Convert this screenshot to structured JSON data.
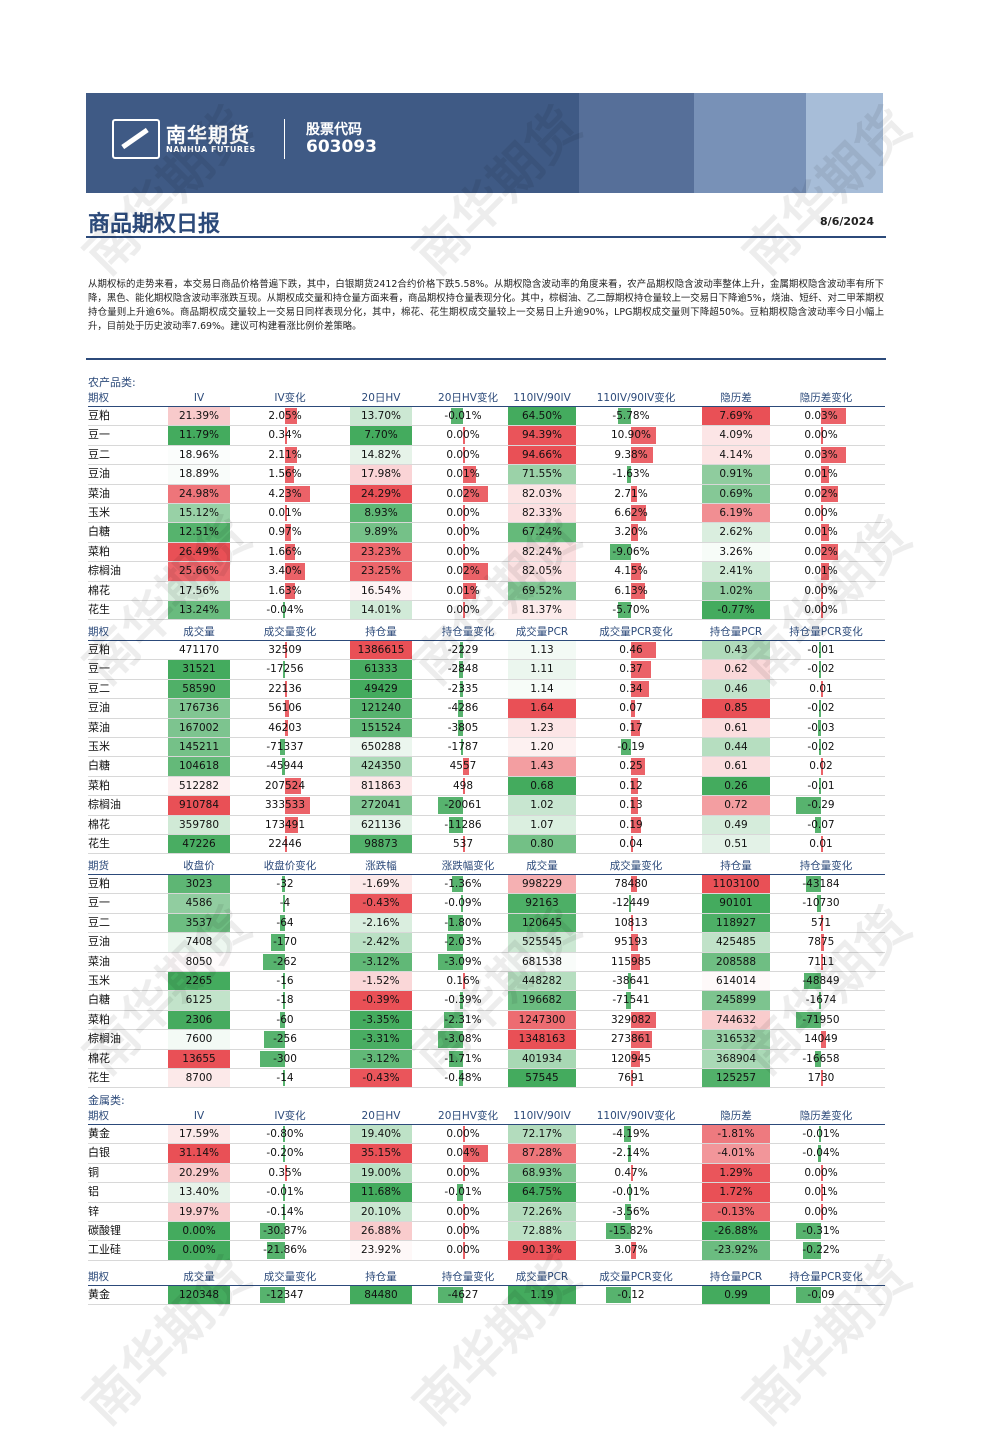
{
  "header": {
    "logo_cn": "南华期货",
    "logo_en": "NANHUA FUTURES",
    "code_label": "股票代码",
    "code_value": "603093",
    "stripes": [
      "#3f5a85",
      "#566f99",
      "#7891b7",
      "#a7bdd8"
    ]
  },
  "report": {
    "title": "商品期权日报",
    "date": "8/6/2024",
    "summary": "从期权标的走势来看，本交易日商品价格普遍下跌，其中，白银期货2412合约价格下跌5.58%。从期权隐含波动率的角度来看，农产品期权隐含波动率整体上升，金属期权隐含波动率有所下降，黑色、能化期权隐含波动率涨跌互现。从期权成交量和持仓量方面来看，商品期权持仓量表现分化。其中，棕榈油、乙二醇期权持仓量较上一交易日下降逾5%，烧油、短纤、对二甲苯期权持仓量则上升逾6%。商品期权成交量较上一交易日同样表现分化，其中，棉花、花生期权成交量较上一交易日上升逾90%，LPG期权成交量则下降超50%。豆粕期权隐含波动率今日小幅上升，目前处于历史波动率7.69%。建议可构建看涨比例价差策略。"
  },
  "colors": {
    "red": "#e8474d",
    "green": "#3aa655"
  },
  "tables": [
    {
      "section": "农产品类:",
      "headers": [
        "期权",
        "IV",
        "IV变化",
        "20日HV",
        "20日HV变化",
        "110IV/90IV",
        "110IV/90IV变化",
        "隐历差",
        "隐历差变化"
      ],
      "kinds": [
        "name",
        "heat",
        "bar",
        "heat",
        "bar",
        "heat",
        "bar",
        "heat",
        "bar"
      ],
      "rows": [
        [
          "豆粕",
          "21.39%",
          "2.05%",
          "13.70%",
          "-0.01%",
          "64.50%",
          "-5.78%",
          "7.69%",
          "0.03%"
        ],
        [
          "豆一",
          "11.79%",
          "0.34%",
          "7.70%",
          "0.00%",
          "94.39%",
          "10.90%",
          "4.09%",
          "0.00%"
        ],
        [
          "豆二",
          "18.96%",
          "2.11%",
          "14.82%",
          "0.00%",
          "94.66%",
          "9.38%",
          "4.14%",
          "0.03%"
        ],
        [
          "豆油",
          "18.89%",
          "1.56%",
          "17.98%",
          "0.01%",
          "71.55%",
          "-1.63%",
          "0.91%",
          "0.01%"
        ],
        [
          "菜油",
          "24.98%",
          "4.23%",
          "24.29%",
          "0.02%",
          "82.03%",
          "2.71%",
          "0.69%",
          "0.02%"
        ],
        [
          "玉米",
          "15.12%",
          "0.01%",
          "8.93%",
          "0.00%",
          "82.33%",
          "6.62%",
          "6.19%",
          "0.00%"
        ],
        [
          "白糖",
          "12.51%",
          "0.97%",
          "9.89%",
          "0.00%",
          "67.24%",
          "3.20%",
          "2.62%",
          "0.01%"
        ],
        [
          "菜粕",
          "26.49%",
          "1.66%",
          "23.23%",
          "0.00%",
          "82.24%",
          "-9.06%",
          "3.26%",
          "0.02%"
        ],
        [
          "棕榈油",
          "25.66%",
          "3.40%",
          "23.25%",
          "0.02%",
          "82.05%",
          "4.15%",
          "2.41%",
          "0.01%"
        ],
        [
          "棉花",
          "17.56%",
          "1.63%",
          "16.54%",
          "0.01%",
          "69.52%",
          "6.13%",
          "1.02%",
          "0.00%"
        ],
        [
          "花生",
          "13.24%",
          "-0.04%",
          "14.01%",
          "0.00%",
          "81.37%",
          "-5.70%",
          "-0.77%",
          "0.00%"
        ]
      ]
    },
    {
      "section": "",
      "headers": [
        "期权",
        "成交量",
        "成交量变化",
        "持仓量",
        "持仓量变化",
        "成交量PCR",
        "成交量PCR变化",
        "持仓量PCR",
        "持仓量PCR变化"
      ],
      "kinds": [
        "name",
        "heat",
        "bar",
        "heat",
        "bar",
        "heat",
        "bar",
        "heat",
        "bar"
      ],
      "rows": [
        [
          "豆粕",
          "471170",
          "32509",
          "1386615",
          "-2229",
          "1.13",
          "0.46",
          "0.43",
          "-0.01"
        ],
        [
          "豆一",
          "31521",
          "-17256",
          "61333",
          "-2848",
          "1.11",
          "0.37",
          "0.62",
          "-0.02"
        ],
        [
          "豆二",
          "58590",
          "22136",
          "49429",
          "-2335",
          "1.14",
          "0.34",
          "0.46",
          "0.01"
        ],
        [
          "豆油",
          "176736",
          "56106",
          "121240",
          "-4286",
          "1.64",
          "0.07",
          "0.85",
          "-0.02"
        ],
        [
          "菜油",
          "167002",
          "46203",
          "151524",
          "-3805",
          "1.23",
          "0.17",
          "0.61",
          "-0.03"
        ],
        [
          "玉米",
          "145211",
          "-71337",
          "650288",
          "-1787",
          "1.20",
          "-0.19",
          "0.44",
          "-0.02"
        ],
        [
          "白糖",
          "104618",
          "-45944",
          "424350",
          "4557",
          "1.43",
          "0.25",
          "0.61",
          "0.02"
        ],
        [
          "菜粕",
          "512282",
          "207524",
          "811863",
          "498",
          "0.68",
          "0.12",
          "0.26",
          "-0.01"
        ],
        [
          "棕榈油",
          "910784",
          "333533",
          "272041",
          "-20061",
          "1.02",
          "0.13",
          "0.72",
          "-0.29"
        ],
        [
          "棉花",
          "359780",
          "173491",
          "621136",
          "-11286",
          "1.07",
          "0.19",
          "0.49",
          "-0.07"
        ],
        [
          "花生",
          "47226",
          "22446",
          "98873",
          "537",
          "0.80",
          "0.04",
          "0.51",
          "0.01"
        ]
      ]
    },
    {
      "section": "",
      "headers": [
        "期货",
        "收盘价",
        "收盘价变化",
        "涨跌幅",
        "涨跌幅变化",
        "成交量",
        "成交量变化",
        "持仓量",
        "持仓量变化"
      ],
      "kinds": [
        "name",
        "heat",
        "bar",
        "heat",
        "bar",
        "heat",
        "bar",
        "heat",
        "bar"
      ],
      "rows": [
        [
          "豆粕",
          "3023",
          "-32",
          "-1.69%",
          "-1.36%",
          "998229",
          "78480",
          "1103100",
          "-43184"
        ],
        [
          "豆一",
          "4586",
          "-4",
          "-0.43%",
          "-0.09%",
          "92163",
          "-12449",
          "90101",
          "-10730"
        ],
        [
          "豆二",
          "3537",
          "-64",
          "-2.16%",
          "-1.80%",
          "120645",
          "10813",
          "118927",
          "571"
        ],
        [
          "豆油",
          "7408",
          "-170",
          "-2.42%",
          "-2.03%",
          "525545",
          "95193",
          "425485",
          "7875"
        ],
        [
          "菜油",
          "8050",
          "-262",
          "-3.12%",
          "-3.09%",
          "681538",
          "115985",
          "208588",
          "7111"
        ],
        [
          "玉米",
          "2265",
          "-16",
          "-1.52%",
          "0.16%",
          "448282",
          "-38641",
          "614014",
          "-48849"
        ],
        [
          "白糖",
          "6125",
          "-18",
          "-0.39%",
          "-0.39%",
          "196682",
          "-71541",
          "245899",
          "-1674"
        ],
        [
          "菜粕",
          "2306",
          "-60",
          "-3.35%",
          "-2.31%",
          "1247300",
          "329082",
          "744632",
          "-71950"
        ],
        [
          "棕榈油",
          "7600",
          "-256",
          "-3.31%",
          "-3.08%",
          "1348163",
          "273861",
          "316532",
          "14049"
        ],
        [
          "棉花",
          "13655",
          "-300",
          "-3.12%",
          "-1.71%",
          "401934",
          "120945",
          "368904",
          "-16658"
        ],
        [
          "花生",
          "8700",
          "-14",
          "-0.43%",
          "-0.48%",
          "57545",
          "7691",
          "125257",
          "1730"
        ]
      ]
    },
    {
      "section": "金属类:",
      "headers": [
        "期权",
        "IV",
        "IV变化",
        "20日HV",
        "20日HV变化",
        "110IV/90IV",
        "110IV/90IV变化",
        "隐历差",
        "隐历差变化"
      ],
      "kinds": [
        "name",
        "heat",
        "bar",
        "heat",
        "bar",
        "heat",
        "bar",
        "heat",
        "bar"
      ],
      "rows": [
        [
          "黄金",
          "17.59%",
          "-0.80%",
          "19.40%",
          "0.00%",
          "72.17%",
          "-4.19%",
          "-1.81%",
          "-0.01%"
        ],
        [
          "白银",
          "31.14%",
          "-0.20%",
          "35.15%",
          "0.04%",
          "87.28%",
          "-2.14%",
          "-4.01%",
          "-0.04%"
        ],
        [
          "铜",
          "20.29%",
          "0.35%",
          "19.00%",
          "0.00%",
          "68.93%",
          "0.47%",
          "1.29%",
          "0.00%"
        ],
        [
          "铝",
          "13.40%",
          "-0.01%",
          "11.68%",
          "-0.01%",
          "64.75%",
          "-0.01%",
          "1.72%",
          "0.01%"
        ],
        [
          "锌",
          "19.97%",
          "-0.14%",
          "20.10%",
          "0.00%",
          "72.26%",
          "-3.56%",
          "-0.13%",
          "0.00%"
        ],
        [
          "碳酸锂",
          "0.00%",
          "-30.87%",
          "26.88%",
          "0.00%",
          "72.88%",
          "-15.82%",
          "-26.88%",
          "-0.31%"
        ],
        [
          "工业硅",
          "0.00%",
          "-21.86%",
          "23.92%",
          "0.00%",
          "90.13%",
          "3.07%",
          "-23.92%",
          "-0.22%"
        ]
      ]
    },
    {
      "section": "",
      "headers": [
        "期权",
        "成交量",
        "成交量变化",
        "持仓量",
        "持仓量变化",
        "成交量PCR",
        "成交量PCR变化",
        "持仓量PCR",
        "持仓量PCR变化"
      ],
      "kinds": [
        "name",
        "heat",
        "bar",
        "heat",
        "bar",
        "heat",
        "bar",
        "heat",
        "bar"
      ],
      "rows": [
        [
          "黄金",
          "120348",
          "-12347",
          "84480",
          "-4627",
          "1.19",
          "-0.12",
          "0.99",
          "-0.09"
        ]
      ]
    }
  ],
  "watermark": "南华期货"
}
